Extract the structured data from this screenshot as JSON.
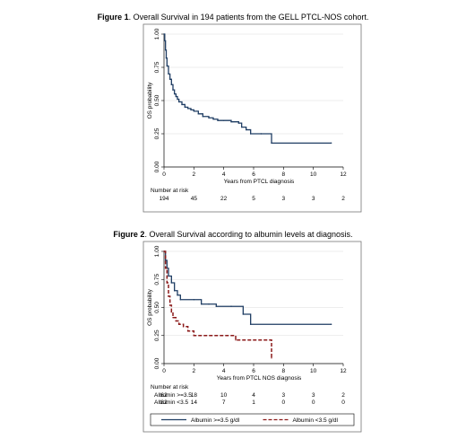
{
  "figure1": {
    "caption_prefix": "Figure 1",
    "caption_text": ". Overall Survival in 194 patients from the GELL PTCL-NOS cohort."
  },
  "figure2": {
    "caption_prefix": "Figure 2",
    "caption_text": ". Overall Survival according to albumin levels at diagnosis."
  },
  "colors": {
    "series1": "#1f3d63",
    "series2": "#8b1a1a"
  },
  "chart_data": [
    {
      "type": "line",
      "title": "Figure 1. Overall Survival in 194 patients from the GELL PTCL-NOS cohort.",
      "xlabel": "Years from PTCL diagnosis",
      "ylabel": "OS probability",
      "xlim": [
        0,
        12
      ],
      "ylim": [
        0,
        1
      ],
      "xticks": [
        "0",
        "2",
        "4",
        "6",
        "8",
        "10",
        "12"
      ],
      "yticks": [
        "0.00",
        "0.25",
        "0.50",
        "0.75",
        "1.00"
      ],
      "grid": true,
      "series": [
        {
          "style": "step",
          "x": [
            0,
            0.05,
            0.1,
            0.15,
            0.2,
            0.3,
            0.4,
            0.5,
            0.6,
            0.7,
            0.8,
            0.9,
            1.0,
            1.2,
            1.4,
            1.6,
            1.8,
            2.0,
            2.3,
            2.6,
            3.0,
            3.3,
            3.6,
            4.0,
            4.5,
            5.0,
            5.2,
            5.5,
            5.8,
            6.5,
            7.2,
            11.2
          ],
          "y": [
            1.0,
            0.95,
            0.88,
            0.82,
            0.76,
            0.7,
            0.66,
            0.62,
            0.58,
            0.55,
            0.53,
            0.51,
            0.49,
            0.47,
            0.45,
            0.44,
            0.43,
            0.42,
            0.4,
            0.38,
            0.37,
            0.36,
            0.35,
            0.35,
            0.34,
            0.33,
            0.3,
            0.28,
            0.25,
            0.25,
            0.18,
            0.18
          ]
        }
      ],
      "risk_table": {
        "title": "Number at risk",
        "rows": [
          {
            "label": "",
            "values": [
              "194",
              "45",
              "22",
              "5",
              "3",
              "3",
              "2"
            ]
          }
        ]
      }
    },
    {
      "type": "line",
      "title": "Figure 2. Overall Survival according to albumin levels at diagnosis.",
      "xlabel": "Years from PTCL NOS diagnosis",
      "ylabel": "OS probability",
      "xlim": [
        0,
        12
      ],
      "ylim": [
        0,
        1
      ],
      "xticks": [
        "0",
        "2",
        "4",
        "6",
        "8",
        "10",
        "12"
      ],
      "yticks": [
        "0.00",
        "0.25",
        "0.50",
        "0.75",
        "1.00"
      ],
      "grid": true,
      "legend_position": "bottom",
      "series": [
        {
          "name": "Albumin >=3.5 g/dl",
          "style": "step",
          "x": [
            0,
            0.1,
            0.2,
            0.3,
            0.5,
            0.7,
            0.9,
            1.1,
            2.0,
            2.5,
            3.0,
            3.5,
            4.5,
            5.3,
            5.8,
            11.2
          ],
          "y": [
            1.0,
            0.92,
            0.85,
            0.78,
            0.72,
            0.65,
            0.61,
            0.57,
            0.57,
            0.53,
            0.53,
            0.51,
            0.51,
            0.44,
            0.35,
            0.35
          ]
        },
        {
          "name": "Albumin <3.5 g/dl",
          "style": "step",
          "x": [
            0,
            0.1,
            0.2,
            0.3,
            0.4,
            0.5,
            0.6,
            0.8,
            1.0,
            1.3,
            1.6,
            2.0,
            4.8,
            7.1,
            7.2
          ],
          "y": [
            1.0,
            0.85,
            0.72,
            0.6,
            0.52,
            0.46,
            0.41,
            0.38,
            0.35,
            0.33,
            0.29,
            0.25,
            0.21,
            0.21,
            0.05
          ]
        }
      ],
      "risk_table": {
        "title": "Number at risk",
        "rows": [
          {
            "label": "Albumin >=3.5",
            "values": [
              "62",
              "18",
              "10",
              "4",
              "3",
              "3",
              "2"
            ]
          },
          {
            "label": "Albumin <3.5",
            "values": [
              "82",
              "14",
              "7",
              "1",
              "0",
              "0",
              "0"
            ]
          }
        ]
      }
    }
  ]
}
